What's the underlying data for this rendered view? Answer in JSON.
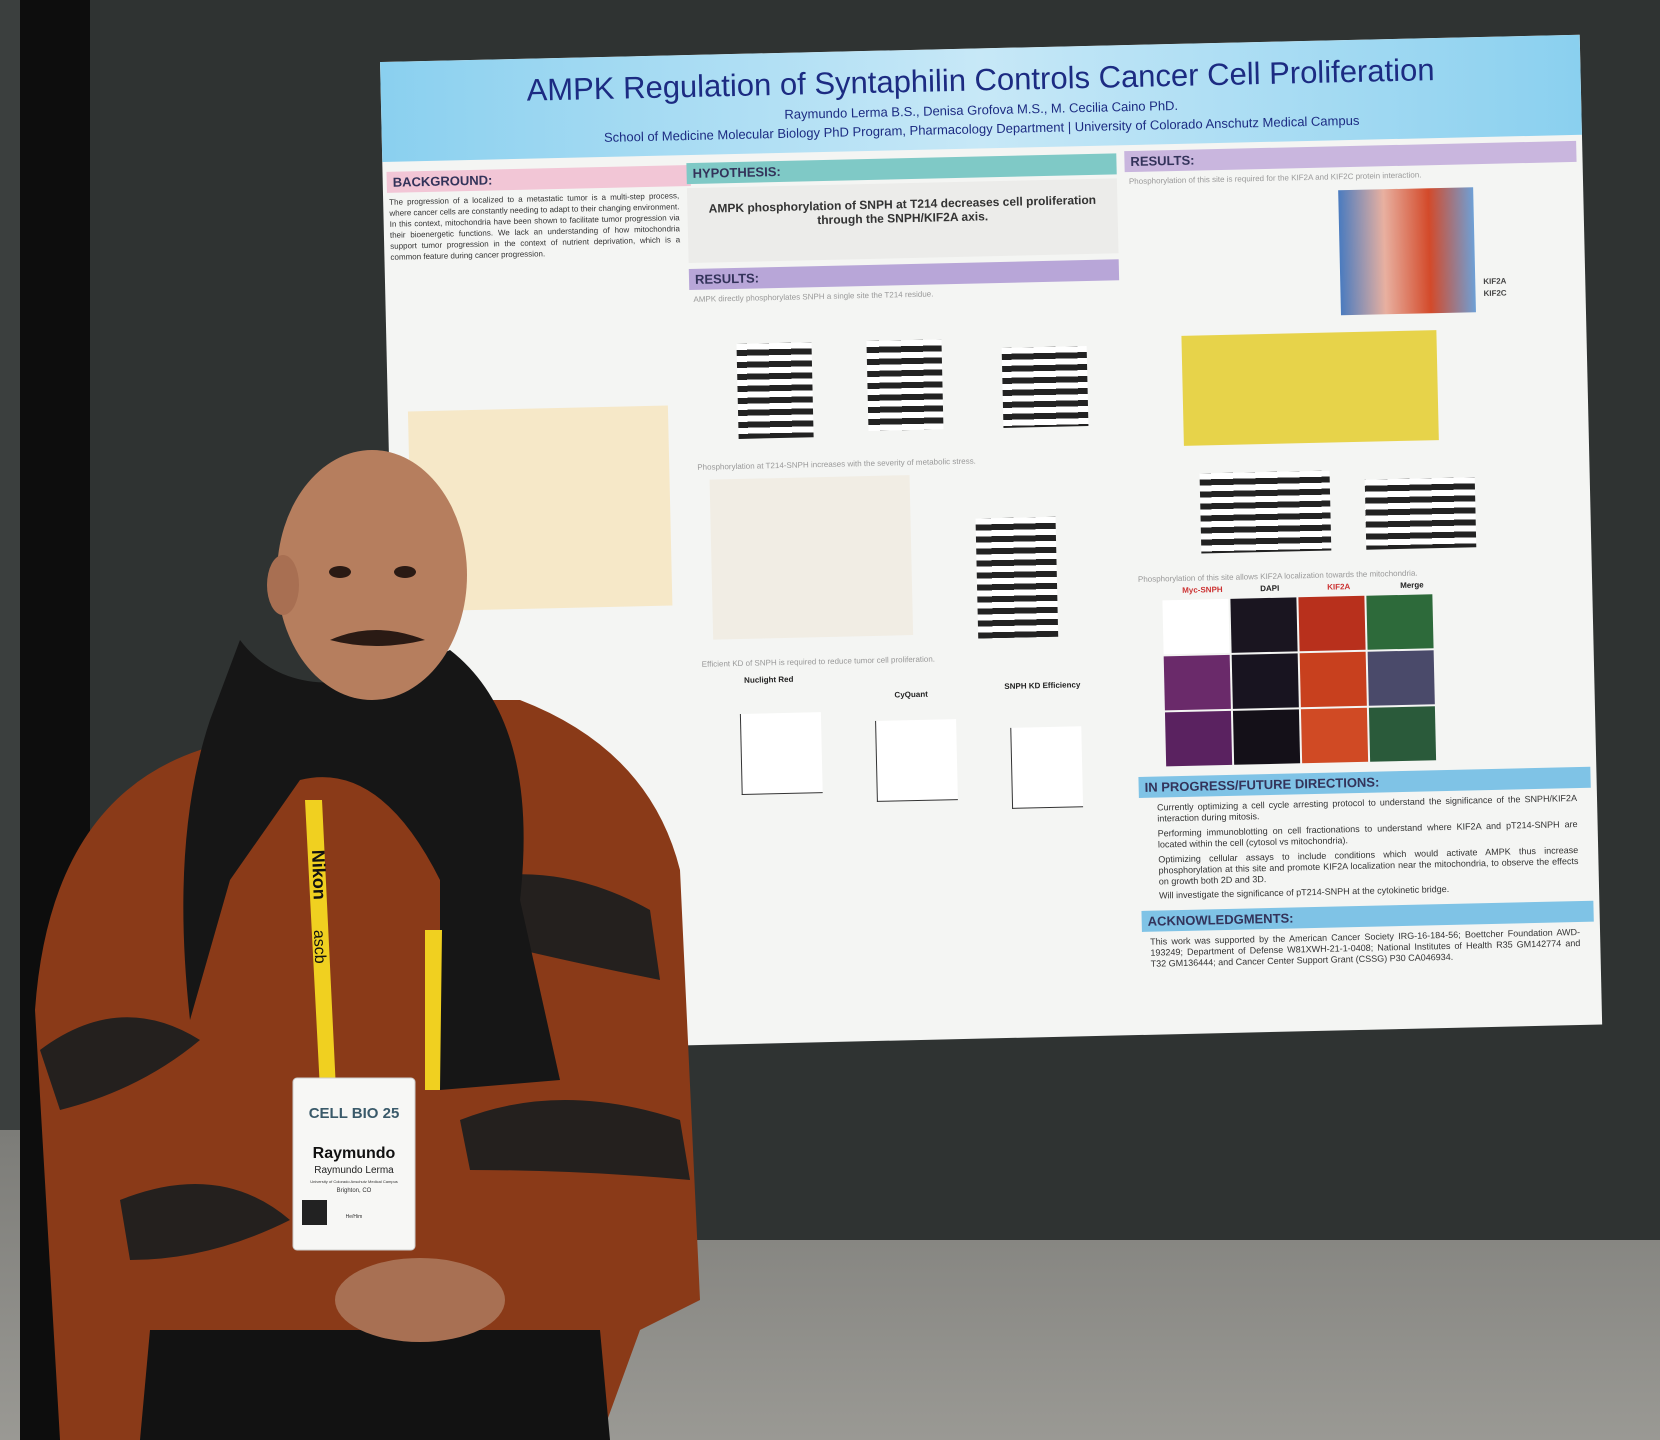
{
  "poster": {
    "title": "AMPK Regulation of Syntaphilin Controls Cancer Cell Proliferation",
    "authors": "Raymundo Lerma B.S., Denisa Grofova M.S., M. Cecilia Caino PhD.",
    "affiliation": "School of Medicine Molecular Biology PhD Program, Pharmacology Department | University of Colorado Anschutz Medical Campus",
    "background": {
      "heading": "BACKGROUND:",
      "text": "The progression of a localized to a metastatic tumor is a multi-step process, where cancer cells are constantly needing to adapt to their changing environment. In this context, mitochondria have been shown to facilitate tumor progression via their bioenergetic functions. We lack an understanding of how mitochondria support tumor progression in the context of nutrient deprivation, which is a common feature during cancer progression."
    },
    "hypothesis": {
      "heading": "HYPOTHESIS:",
      "text": "AMPK phosphorylation of SNPH at T214 decreases cell proliferation through the SNPH/KIF2A axis."
    },
    "results_middle": {
      "heading": "RESULTS:",
      "panels": [
        "AMPK directly phosphorylates SNPH a single site the T214 residue.",
        "Phosphorylation at T214-SNPH increases with the severity of metabolic stress.",
        "Efficient KD of SNPH is required to reduce tumor cell proliferation."
      ]
    },
    "charts": [
      "Nuclight Red",
      "CyQuant",
      "SNPH KD Efficiency"
    ],
    "results_right": {
      "heading": "RESULTS:",
      "panels": [
        "Phosphorylation of this site is required for the KIF2A and KIF2C protein interaction.",
        "Phosphorylation of this site allows KIF2A localization towards the mitochondria."
      ]
    },
    "heatmap_labels": [
      "KIF2A",
      "KIF2C"
    ],
    "microscopy_columns": [
      "Myc-SNPH",
      "DAPI",
      "KIF2A",
      "Merge"
    ],
    "future": {
      "heading": "IN PROGRESS/FUTURE DIRECTIONS:",
      "items": [
        "Currently optimizing a cell cycle arresting protocol to understand the significance of the SNPH/KIF2A interaction during mitosis.",
        "Performing immunoblotting on cell fractionations to understand where KIF2A and pT214-SNPH are located within the cell (cytosol vs mitochondria).",
        "Optimizing cellular assays to include conditions which would activate AMPK thus increase phosphorylation at this site and promote KIF2A localization near the mitochondria, to observe the effects on growth both 2D and 3D.",
        "Will investigate the significance of pT214-SNPH at the cytokinetic bridge."
      ]
    },
    "acknowledgments": {
      "heading": "ACKNOWLEDGMENTS:",
      "text": "This work was supported by the American Cancer Society IRG-16-184-56; Boettcher Foundation AWD-193249; Department of Defense W81XWH-21-1-0408; National Institutes of Health R35 GM142774 and T32 GM136444; and Cancer Center Support Grant (CSSG) P30 CA046934."
    }
  },
  "badge": {
    "event": "CELL BIO 25",
    "first_name": "Raymundo",
    "full_name": "Raymundo Lerma",
    "institution": "University of Colorado Anschutz Medical Campus",
    "location": "Brighton, CO",
    "pronouns": "He/Him"
  },
  "lanyard": [
    "Nikon",
    "ascb"
  ]
}
